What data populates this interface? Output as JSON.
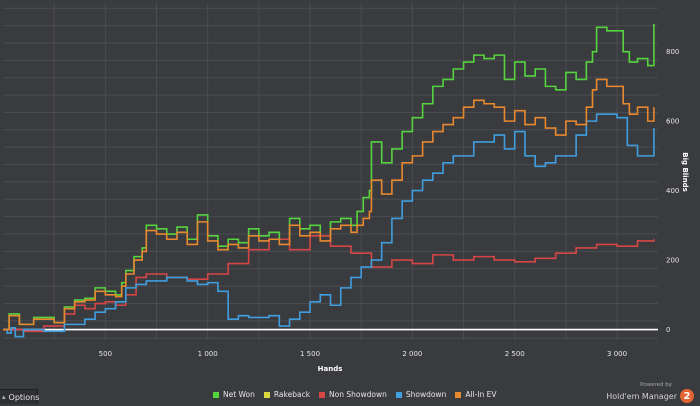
{
  "chart_data": {
    "type": "line",
    "xlabel": "Hands",
    "ylabel": "Big Blinds",
    "xlim": [
      0,
      3200
    ],
    "ylim": [
      -30,
      940
    ],
    "x_ticks": [
      500,
      1000,
      1500,
      2000,
      2500,
      3000
    ],
    "x_tick_labels": [
      "500",
      "1 000",
      "1 500",
      "2 000",
      "2 500",
      "3 000"
    ],
    "y_ticks": [
      0,
      200,
      400,
      600,
      800
    ],
    "y_tick_labels": [
      "0",
      "200",
      "400",
      "600",
      "800"
    ],
    "y_axis_side": "right",
    "grid": true,
    "legend_position": "bottom",
    "series": [
      {
        "name": "Net Won",
        "color": "#55d43f",
        "x": [
          0,
          30,
          80,
          150,
          250,
          300,
          350,
          400,
          450,
          500,
          550,
          580,
          600,
          640,
          680,
          700,
          750,
          800,
          850,
          900,
          950,
          1000,
          1050,
          1100,
          1150,
          1200,
          1250,
          1300,
          1350,
          1400,
          1450,
          1500,
          1550,
          1600,
          1650,
          1700,
          1730,
          1760,
          1790,
          1800,
          1850,
          1900,
          1950,
          2000,
          2050,
          2100,
          2150,
          2200,
          2250,
          2300,
          2350,
          2400,
          2450,
          2500,
          2550,
          2600,
          2650,
          2700,
          2750,
          2800,
          2850,
          2880,
          2900,
          2950,
          3000,
          3030,
          3060,
          3100,
          3150,
          3180
        ],
        "y": [
          0,
          45,
          15,
          35,
          20,
          65,
          85,
          90,
          120,
          110,
          100,
          135,
          170,
          210,
          235,
          300,
          290,
          275,
          295,
          260,
          330,
          270,
          240,
          260,
          250,
          290,
          270,
          280,
          260,
          320,
          290,
          300,
          270,
          310,
          320,
          300,
          340,
          380,
          400,
          540,
          480,
          520,
          570,
          610,
          650,
          700,
          720,
          750,
          770,
          790,
          780,
          790,
          720,
          770,
          730,
          750,
          700,
          690,
          740,
          720,
          770,
          800,
          870,
          860,
          860,
          800,
          770,
          780,
          760,
          880
        ]
      },
      {
        "name": "Rakeback",
        "color": "#d8d83e",
        "x": [],
        "y": []
      },
      {
        "name": "Non Showdown",
        "color": "#d74646",
        "x": [
          0,
          100,
          200,
          300,
          350,
          400,
          450,
          500,
          550,
          600,
          650,
          700,
          800,
          900,
          1000,
          1100,
          1200,
          1300,
          1400,
          1500,
          1600,
          1700,
          1800,
          1900,
          2000,
          2100,
          2200,
          2300,
          2400,
          2500,
          2600,
          2700,
          2800,
          2900,
          3000,
          3100,
          3180
        ],
        "y": [
          0,
          -5,
          10,
          45,
          70,
          60,
          75,
          80,
          70,
          100,
          150,
          160,
          150,
          145,
          160,
          190,
          230,
          260,
          230,
          270,
          240,
          220,
          180,
          200,
          190,
          215,
          200,
          210,
          200,
          195,
          205,
          220,
          235,
          245,
          240,
          255,
          260
        ]
      },
      {
        "name": "Showdown",
        "color": "#3f9ee0",
        "x": [
          0,
          20,
          40,
          60,
          100,
          200,
          300,
          400,
          450,
          500,
          550,
          600,
          650,
          700,
          800,
          900,
          950,
          1000,
          1050,
          1100,
          1150,
          1200,
          1300,
          1350,
          1400,
          1450,
          1500,
          1550,
          1600,
          1650,
          1700,
          1750,
          1800,
          1850,
          1900,
          1950,
          2000,
          2050,
          2100,
          2150,
          2200,
          2300,
          2400,
          2450,
          2500,
          2550,
          2600,
          2650,
          2700,
          2800,
          2850,
          2900,
          3000,
          3050,
          3100,
          3150,
          3180
        ],
        "y": [
          0,
          -10,
          5,
          -20,
          0,
          -5,
          15,
          30,
          50,
          60,
          80,
          120,
          130,
          140,
          150,
          140,
          130,
          135,
          110,
          30,
          40,
          35,
          40,
          10,
          30,
          50,
          80,
          100,
          70,
          120,
          150,
          180,
          200,
          250,
          320,
          370,
          400,
          430,
          450,
          480,
          500,
          540,
          560,
          520,
          570,
          500,
          470,
          480,
          500,
          560,
          600,
          620,
          610,
          530,
          500,
          500,
          580
        ]
      },
      {
        "name": "All-In EV",
        "color": "#e8882f",
        "x": [
          0,
          30,
          80,
          150,
          250,
          300,
          350,
          400,
          450,
          500,
          550,
          580,
          600,
          640,
          680,
          700,
          750,
          800,
          850,
          900,
          950,
          1000,
          1050,
          1100,
          1150,
          1200,
          1250,
          1300,
          1350,
          1400,
          1450,
          1500,
          1550,
          1600,
          1650,
          1700,
          1730,
          1760,
          1790,
          1800,
          1850,
          1900,
          1950,
          2000,
          2050,
          2100,
          2150,
          2200,
          2250,
          2300,
          2350,
          2400,
          2450,
          2500,
          2550,
          2600,
          2650,
          2700,
          2750,
          2800,
          2850,
          2880,
          2900,
          2950,
          3000,
          3030,
          3060,
          3100,
          3150,
          3180
        ],
        "y": [
          0,
          40,
          15,
          30,
          20,
          60,
          80,
          85,
          110,
          100,
          95,
          125,
          160,
          200,
          225,
          285,
          275,
          260,
          280,
          245,
          310,
          255,
          230,
          245,
          235,
          270,
          255,
          260,
          245,
          300,
          270,
          280,
          255,
          290,
          300,
          280,
          300,
          320,
          340,
          430,
          390,
          430,
          480,
          500,
          540,
          570,
          590,
          610,
          640,
          660,
          650,
          640,
          600,
          630,
          590,
          610,
          580,
          560,
          600,
          590,
          640,
          690,
          720,
          700,
          700,
          650,
          620,
          640,
          600,
          640
        ]
      }
    ]
  },
  "footer": {
    "options_label": "Options",
    "powered_by": "Powered by",
    "brand_name": "Hold'em Manager",
    "brand_badge": "2"
  }
}
